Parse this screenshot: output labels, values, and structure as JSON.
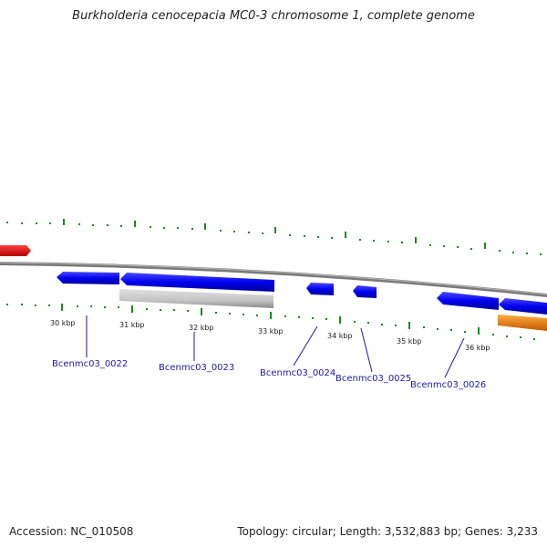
{
  "title": "Burkholderia cenocepacia MC0-3 chromosome 1, complete genome",
  "footer": {
    "accession": "Accession: NC_010508",
    "summary": "Topology: circular; Length: 3,532,883 bp; Genes: 3,233"
  },
  "colors": {
    "gene_forward": "#0000ee",
    "gene_reverse": "#0000ee",
    "pseudogene": "#c0c0c0",
    "other_feature_red": "#ee0000",
    "other_feature_orange": "#ff8c00",
    "ticks": "#1a8a1a",
    "backbone": "#808080"
  },
  "scale_labels": [
    "30 kbp",
    "31 kbp",
    "32 kbp",
    "33 kbp",
    "34 kbp",
    "35 kbp",
    "36 kbp"
  ],
  "gene_labels": [
    "Bcenmc03_0022",
    "Bcenmc03_0023",
    "Bcenmc03_0024",
    "Bcenmc03_0025",
    "Bcenmc03_0026"
  ]
}
